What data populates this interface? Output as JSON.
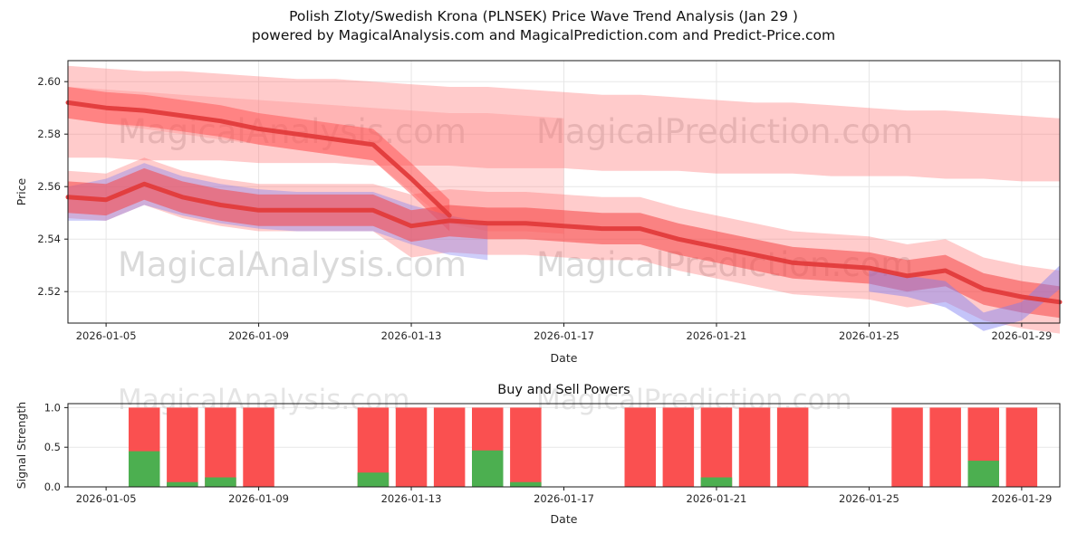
{
  "page": {
    "title_line1": "Polish Zloty/Swedish Krona (PLNSEK) Price Wave Trend Analysis (Jan 29 )",
    "title_line2": "powered by MagicalAnalysis.com and MagicalPrediction.com and Predict-Price.com"
  },
  "watermarks": {
    "analysis": "MagicalAnalysis.com",
    "prediction": "MagicalPrediction.com"
  },
  "colors": {
    "grid": "#e7e7e7",
    "watermark": "#d6d6d6",
    "spine": "#1a1a1a",
    "tick_text": "#262626",
    "bar_red": "#fa5050",
    "bar_green": "#4caf50",
    "trend_line": "#e23b3b"
  },
  "chart_data": [
    {
      "type": "area",
      "title": "",
      "xlabel": "Date",
      "ylabel": "Price",
      "ylim": [
        2.508,
        2.608
      ],
      "yticks": [
        2.52,
        2.54,
        2.56,
        2.58,
        2.6
      ],
      "ytick_labels": [
        "2.52",
        "2.54",
        "2.56",
        "2.58",
        "2.60"
      ],
      "xticks": [
        "2026-01-05",
        "2026-01-09",
        "2026-01-13",
        "2026-01-17",
        "2026-01-21",
        "2026-01-25",
        "2026-01-29"
      ],
      "dates": [
        "2026-01-04",
        "2026-01-05",
        "2026-01-06",
        "2026-01-07",
        "2026-01-08",
        "2026-01-09",
        "2026-01-10",
        "2026-01-11",
        "2026-01-12",
        "2026-01-13",
        "2026-01-14",
        "2026-01-15",
        "2026-01-16",
        "2026-01-17",
        "2026-01-18",
        "2026-01-19",
        "2026-01-20",
        "2026-01-21",
        "2026-01-22",
        "2026-01-23",
        "2026-01-24",
        "2026-01-25",
        "2026-01-26",
        "2026-01-27",
        "2026-01-28",
        "2026-01-29",
        "2026-01-30"
      ],
      "bands": [
        {
          "name": "outer-upper-band",
          "color": "#ff6b6b",
          "opacity": 0.35,
          "upper": [
            2.606,
            2.605,
            2.604,
            2.604,
            2.603,
            2.602,
            2.601,
            2.601,
            2.6,
            2.599,
            2.598,
            2.598,
            2.597,
            2.596,
            2.595,
            2.595,
            2.594,
            2.593,
            2.592,
            2.592,
            2.591,
            2.59,
            2.589,
            2.589,
            2.588,
            2.587,
            2.586
          ],
          "lower": [
            2.571,
            2.571,
            2.57,
            2.57,
            2.57,
            2.569,
            2.569,
            2.569,
            2.568,
            2.568,
            2.568,
            2.567,
            2.567,
            2.567,
            2.566,
            2.566,
            2.566,
            2.565,
            2.565,
            2.565,
            2.564,
            2.564,
            2.564,
            2.563,
            2.563,
            2.562,
            2.562
          ]
        },
        {
          "name": "forecast-fan-band",
          "color": "#ff7a7a",
          "opacity": 0.28,
          "upper": [
            2.598,
            2.597,
            2.596,
            2.595,
            2.594,
            2.593,
            2.592,
            2.591,
            2.59,
            2.589,
            2.588,
            2.588,
            2.587,
            2.586,
            null,
            null,
            null,
            null,
            null,
            null,
            null,
            null,
            null,
            null,
            null,
            null,
            null
          ],
          "lower": [
            2.586,
            2.584,
            2.582,
            2.58,
            2.578,
            2.576,
            2.574,
            2.572,
            2.57,
            2.558,
            2.546,
            2.543,
            2.543,
            2.542,
            null,
            null,
            null,
            null,
            null,
            null,
            null,
            null,
            null,
            null,
            null,
            null,
            null
          ]
        },
        {
          "name": "outer-main-band",
          "color": "#ff6060",
          "opacity": 0.32,
          "upper": [
            2.566,
            2.565,
            2.571,
            2.566,
            2.563,
            2.561,
            2.561,
            2.561,
            2.561,
            2.557,
            2.559,
            2.558,
            2.558,
            2.557,
            2.556,
            2.556,
            2.552,
            2.549,
            2.546,
            2.543,
            2.542,
            2.541,
            2.538,
            2.54,
            2.533,
            2.53,
            2.528
          ],
          "lower": [
            2.548,
            2.547,
            2.553,
            2.548,
            2.545,
            2.543,
            2.543,
            2.543,
            2.543,
            2.533,
            2.535,
            2.534,
            2.534,
            2.533,
            2.532,
            2.532,
            2.528,
            2.525,
            2.522,
            2.519,
            2.518,
            2.517,
            2.514,
            2.516,
            2.509,
            2.506,
            2.504
          ]
        },
        {
          "name": "upper-trend-inner-band",
          "color": "#ff5252",
          "opacity": 0.5,
          "upper": [
            2.598,
            2.596,
            2.595,
            2.593,
            2.591,
            2.588,
            2.586,
            2.584,
            2.582,
            2.569,
            2.555,
            null,
            null,
            null,
            null,
            null,
            null,
            null,
            null,
            null,
            null,
            null,
            null,
            null,
            null,
            null,
            null
          ],
          "lower": [
            2.586,
            2.584,
            2.583,
            2.581,
            2.579,
            2.576,
            2.574,
            2.572,
            2.57,
            2.557,
            2.543,
            null,
            null,
            null,
            null,
            null,
            null,
            null,
            null,
            null,
            null,
            null,
            null,
            null,
            null,
            null,
            null
          ]
        },
        {
          "name": "blue-left-band",
          "color": "#7d7df2",
          "opacity": 0.38,
          "upper": [
            2.56,
            2.563,
            2.569,
            2.564,
            2.561,
            2.559,
            2.558,
            2.558,
            2.558,
            2.553,
            2.549,
            2.546,
            null,
            null,
            null,
            null,
            null,
            null,
            null,
            null,
            null,
            null,
            null,
            null,
            null,
            null,
            null
          ],
          "lower": [
            2.547,
            2.547,
            2.553,
            2.549,
            2.546,
            2.544,
            2.543,
            2.543,
            2.543,
            2.538,
            2.534,
            2.532,
            null,
            null,
            null,
            null,
            null,
            null,
            null,
            null,
            null,
            null,
            null,
            null,
            null,
            null,
            null
          ]
        },
        {
          "name": "inner-main-band",
          "color": "#f64545",
          "opacity": 0.55,
          "upper": [
            2.562,
            2.561,
            2.567,
            2.562,
            2.559,
            2.557,
            2.557,
            2.557,
            2.557,
            2.551,
            2.553,
            2.552,
            2.552,
            2.551,
            2.55,
            2.55,
            2.546,
            2.543,
            2.54,
            2.537,
            2.536,
            2.535,
            2.532,
            2.534,
            2.527,
            2.524,
            2.522
          ],
          "lower": [
            2.55,
            2.549,
            2.555,
            2.55,
            2.547,
            2.545,
            2.545,
            2.545,
            2.545,
            2.539,
            2.541,
            2.54,
            2.54,
            2.539,
            2.538,
            2.538,
            2.534,
            2.531,
            2.528,
            2.525,
            2.524,
            2.523,
            2.52,
            2.522,
            2.515,
            2.512,
            2.51
          ]
        },
        {
          "name": "blue-right-band",
          "color": "#7d7df2",
          "opacity": 0.45,
          "upper": [
            null,
            null,
            null,
            null,
            null,
            null,
            null,
            null,
            null,
            null,
            null,
            null,
            null,
            null,
            null,
            null,
            null,
            null,
            null,
            null,
            null,
            2.528,
            2.526,
            2.524,
            2.512,
            2.516,
            2.53
          ],
          "lower": [
            null,
            null,
            null,
            null,
            null,
            null,
            null,
            null,
            null,
            null,
            null,
            null,
            null,
            null,
            null,
            null,
            null,
            null,
            null,
            null,
            null,
            2.52,
            2.518,
            2.514,
            2.505,
            2.509,
            2.521
          ]
        }
      ],
      "lines": [
        {
          "name": "upper-trend-line",
          "color": "#e23b3b",
          "width": 5,
          "opacity": 0.95,
          "values": [
            2.592,
            2.59,
            2.589,
            2.587,
            2.585,
            2.582,
            2.58,
            2.578,
            2.576,
            2.563,
            2.549,
            null,
            null,
            null,
            null,
            null,
            null,
            null,
            null,
            null,
            null,
            null,
            null,
            null,
            null,
            null,
            null
          ]
        },
        {
          "name": "main-price-line",
          "color": "#e23b3b",
          "width": 5,
          "opacity": 0.95,
          "values": [
            2.556,
            2.555,
            2.561,
            2.556,
            2.553,
            2.551,
            2.551,
            2.551,
            2.551,
            2.545,
            2.547,
            2.546,
            2.546,
            2.545,
            2.544,
            2.544,
            2.54,
            2.537,
            2.534,
            2.531,
            2.53,
            2.529,
            2.526,
            2.528,
            2.521,
            2.518,
            2.516
          ]
        }
      ]
    },
    {
      "type": "bar",
      "title": "Buy and Sell Powers",
      "xlabel": "Date",
      "ylabel": "Signal Strength",
      "ylim": [
        0,
        1.05
      ],
      "yticks": [
        0,
        0.5,
        1.0
      ],
      "ytick_labels": [
        "0.0",
        "0.5",
        "1.0"
      ],
      "xticks": [
        "2026-01-05",
        "2026-01-09",
        "2026-01-13",
        "2026-01-17",
        "2026-01-21",
        "2026-01-25",
        "2026-01-29"
      ],
      "bars": [
        {
          "date": "2026-01-06",
          "sell": 1.0,
          "buy": 0.45
        },
        {
          "date": "2026-01-07",
          "sell": 1.0,
          "buy": 0.06
        },
        {
          "date": "2026-01-08",
          "sell": 1.0,
          "buy": 0.12
        },
        {
          "date": "2026-01-09",
          "sell": 1.0,
          "buy": 0.0
        },
        {
          "date": "2026-01-12",
          "sell": 1.0,
          "buy": 0.18
        },
        {
          "date": "2026-01-13",
          "sell": 1.0,
          "buy": 0.0
        },
        {
          "date": "2026-01-14",
          "sell": 1.0,
          "buy": 0.0
        },
        {
          "date": "2026-01-15",
          "sell": 1.0,
          "buy": 0.46
        },
        {
          "date": "2026-01-16",
          "sell": 1.0,
          "buy": 0.06
        },
        {
          "date": "2026-01-19",
          "sell": 1.0,
          "buy": 0.0
        },
        {
          "date": "2026-01-20",
          "sell": 1.0,
          "buy": 0.0
        },
        {
          "date": "2026-01-21",
          "sell": 1.0,
          "buy": 0.12
        },
        {
          "date": "2026-01-22",
          "sell": 1.0,
          "buy": 0.0
        },
        {
          "date": "2026-01-23",
          "sell": 1.0,
          "buy": 0.0
        },
        {
          "date": "2026-01-26",
          "sell": 1.0,
          "buy": 0.0
        },
        {
          "date": "2026-01-27",
          "sell": 1.0,
          "buy": 0.0
        },
        {
          "date": "2026-01-28",
          "sell": 1.0,
          "buy": 0.33
        },
        {
          "date": "2026-01-29",
          "sell": 1.0,
          "buy": 0.0
        }
      ]
    }
  ]
}
